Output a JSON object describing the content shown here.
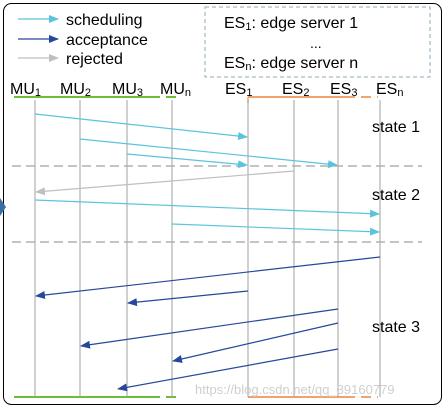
{
  "legend": {
    "items": [
      {
        "label": "scheduling",
        "color": "#5bc4dc"
      },
      {
        "label": "acceptance",
        "color": "#27489a"
      },
      {
        "label": "rejected",
        "color": "#bfbfbf"
      }
    ]
  },
  "server_box": {
    "line1_prefix": "ES",
    "line1_sub": "1",
    "line1_suffix": ": edge server 1",
    "ellipsis": "...",
    "line2_prefix": "ES",
    "line2_sub": "n",
    "line2_suffix": ": edge server n"
  },
  "mobile_users": [
    {
      "base": "MU",
      "sub": "1"
    },
    {
      "base": "MU",
      "sub": "2"
    },
    {
      "base": "MU",
      "sub": "3"
    },
    {
      "base": "MU",
      "sub": "n"
    }
  ],
  "edge_servers": [
    {
      "base": "ES",
      "sub": "1"
    },
    {
      "base": "ES",
      "sub": "2"
    },
    {
      "base": "ES",
      "sub": "3"
    },
    {
      "base": "ES",
      "sub": "n"
    }
  ],
  "states": [
    "state 1",
    "state 2",
    "state 3"
  ],
  "watermark": "https://blog.csdn.net/qq_39160779",
  "colors": {
    "scheduling": "#5bc4dc",
    "acceptance": "#27489a",
    "rejected": "#bfbfbf",
    "mu_bracket": "#6cbd3a",
    "es_bracket": "#f2a36c",
    "lifeline": "#a0a0a0",
    "separator": "#b0b0b0",
    "frame": "#000000",
    "box_border": "#8fa9b8"
  }
}
